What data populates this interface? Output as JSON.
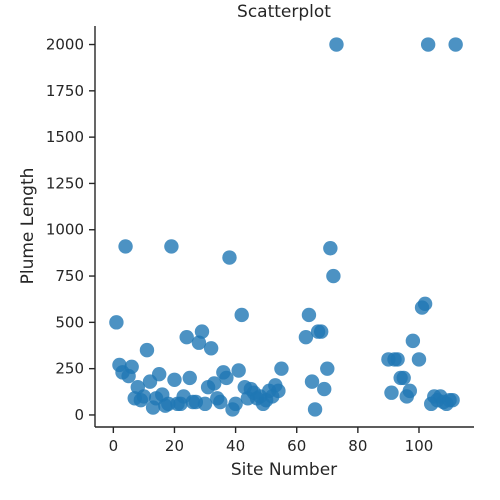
{
  "chart_data": {
    "type": "scatter",
    "title": "Scatterplot",
    "xlabel": "Site Number",
    "ylabel": "Plume Length",
    "xlim": [
      -6,
      118
    ],
    "ylim": [
      -65,
      2100
    ],
    "xticks": [
      0,
      20,
      40,
      60,
      80,
      100
    ],
    "yticks": [
      0,
      250,
      500,
      750,
      1000,
      1250,
      1500,
      1750,
      2000
    ],
    "grid": false,
    "legend": "none",
    "point_color": "#1f77b4",
    "point_opacity": 0.8,
    "points": [
      {
        "x": 1,
        "y": 500
      },
      {
        "x": 2,
        "y": 270
      },
      {
        "x": 3,
        "y": 230
      },
      {
        "x": 4,
        "y": 910
      },
      {
        "x": 5,
        "y": 210
      },
      {
        "x": 6,
        "y": 260
      },
      {
        "x": 7,
        "y": 90
      },
      {
        "x": 8,
        "y": 150
      },
      {
        "x": 9,
        "y": 80
      },
      {
        "x": 10,
        "y": 100
      },
      {
        "x": 11,
        "y": 350
      },
      {
        "x": 12,
        "y": 180
      },
      {
        "x": 13,
        "y": 40
      },
      {
        "x": 14,
        "y": 90
      },
      {
        "x": 15,
        "y": 220
      },
      {
        "x": 16,
        "y": 110
      },
      {
        "x": 17,
        "y": 50
      },
      {
        "x": 18,
        "y": 60
      },
      {
        "x": 19,
        "y": 910
      },
      {
        "x": 20,
        "y": 190
      },
      {
        "x": 21,
        "y": 60
      },
      {
        "x": 22,
        "y": 60
      },
      {
        "x": 23,
        "y": 100
      },
      {
        "x": 24,
        "y": 420
      },
      {
        "x": 25,
        "y": 200
      },
      {
        "x": 26,
        "y": 70
      },
      {
        "x": 27,
        "y": 70
      },
      {
        "x": 28,
        "y": 390
      },
      {
        "x": 29,
        "y": 450
      },
      {
        "x": 30,
        "y": 60
      },
      {
        "x": 31,
        "y": 150
      },
      {
        "x": 32,
        "y": 360
      },
      {
        "x": 33,
        "y": 170
      },
      {
        "x": 34,
        "y": 90
      },
      {
        "x": 35,
        "y": 70
      },
      {
        "x": 36,
        "y": 230
      },
      {
        "x": 37,
        "y": 200
      },
      {
        "x": 38,
        "y": 850
      },
      {
        "x": 39,
        "y": 30
      },
      {
        "x": 40,
        "y": 60
      },
      {
        "x": 41,
        "y": 240
      },
      {
        "x": 42,
        "y": 540
      },
      {
        "x": 43,
        "y": 150
      },
      {
        "x": 44,
        "y": 90
      },
      {
        "x": 45,
        "y": 140
      },
      {
        "x": 46,
        "y": 120
      },
      {
        "x": 47,
        "y": 90
      },
      {
        "x": 48,
        "y": 100
      },
      {
        "x": 49,
        "y": 60
      },
      {
        "x": 50,
        "y": 80
      },
      {
        "x": 51,
        "y": 130
      },
      {
        "x": 52,
        "y": 100
      },
      {
        "x": 53,
        "y": 160
      },
      {
        "x": 54,
        "y": 130
      },
      {
        "x": 55,
        "y": 250
      },
      {
        "x": 63,
        "y": 420
      },
      {
        "x": 64,
        "y": 540
      },
      {
        "x": 65,
        "y": 180
      },
      {
        "x": 66,
        "y": 30
      },
      {
        "x": 67,
        "y": 450
      },
      {
        "x": 68,
        "y": 450
      },
      {
        "x": 69,
        "y": 140
      },
      {
        "x": 70,
        "y": 250
      },
      {
        "x": 71,
        "y": 900
      },
      {
        "x": 72,
        "y": 750
      },
      {
        "x": 73,
        "y": 2000
      },
      {
        "x": 90,
        "y": 300
      },
      {
        "x": 91,
        "y": 120
      },
      {
        "x": 92,
        "y": 300
      },
      {
        "x": 93,
        "y": 300
      },
      {
        "x": 94,
        "y": 200
      },
      {
        "x": 95,
        "y": 200
      },
      {
        "x": 96,
        "y": 100
      },
      {
        "x": 97,
        "y": 130
      },
      {
        "x": 98,
        "y": 400
      },
      {
        "x": 100,
        "y": 300
      },
      {
        "x": 101,
        "y": 580
      },
      {
        "x": 102,
        "y": 600
      },
      {
        "x": 103,
        "y": 2000
      },
      {
        "x": 104,
        "y": 60
      },
      {
        "x": 105,
        "y": 100
      },
      {
        "x": 106,
        "y": 80
      },
      {
        "x": 107,
        "y": 100
      },
      {
        "x": 108,
        "y": 70
      },
      {
        "x": 109,
        "y": 60
      },
      {
        "x": 110,
        "y": 80
      },
      {
        "x": 111,
        "y": 80
      },
      {
        "x": 112,
        "y": 2000
      }
    ]
  }
}
